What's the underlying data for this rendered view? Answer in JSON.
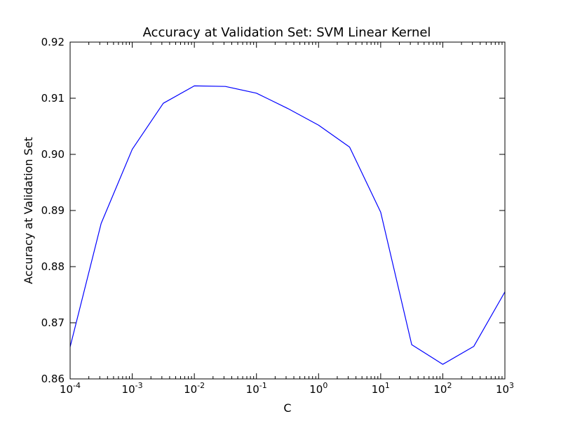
{
  "chart_data": {
    "type": "line",
    "title": "Accuracy at Validation Set: SVM Linear Kernel",
    "xlabel": "C",
    "ylabel": "Accuracy at Validation Set",
    "xscale": "log",
    "xlim": [
      0.0001,
      1000
    ],
    "ylim": [
      0.86,
      0.92
    ],
    "grid": false,
    "x_ticks": [
      {
        "value": 0.0001,
        "base": "10",
        "exp": "-4"
      },
      {
        "value": 0.001,
        "base": "10",
        "exp": "-3"
      },
      {
        "value": 0.01,
        "base": "10",
        "exp": "-2"
      },
      {
        "value": 0.1,
        "base": "10",
        "exp": "-1"
      },
      {
        "value": 1,
        "base": "10",
        "exp": "0"
      },
      {
        "value": 10,
        "base": "10",
        "exp": "1"
      },
      {
        "value": 100,
        "base": "10",
        "exp": "2"
      },
      {
        "value": 1000,
        "base": "10",
        "exp": "3"
      }
    ],
    "y_ticks": [
      {
        "value": 0.86,
        "label": "0.86"
      },
      {
        "value": 0.87,
        "label": "0.87"
      },
      {
        "value": 0.88,
        "label": "0.88"
      },
      {
        "value": 0.89,
        "label": "0.89"
      },
      {
        "value": 0.9,
        "label": "0.90"
      },
      {
        "value": 0.91,
        "label": "0.91"
      },
      {
        "value": 0.92,
        "label": "0.92"
      }
    ],
    "series": [
      {
        "color": "#0000ff",
        "x": [
          0.0001,
          0.000316,
          0.001,
          0.00316,
          0.01,
          0.0316,
          0.1,
          0.316,
          1,
          3.16,
          10,
          31.6,
          100,
          316,
          1000
        ],
        "y": [
          0.8657,
          0.8877,
          0.9009,
          0.9091,
          0.9122,
          0.9121,
          0.9109,
          0.9082,
          0.9052,
          0.9013,
          0.8897,
          0.8661,
          0.8626,
          0.8658,
          0.8755
        ]
      }
    ]
  }
}
